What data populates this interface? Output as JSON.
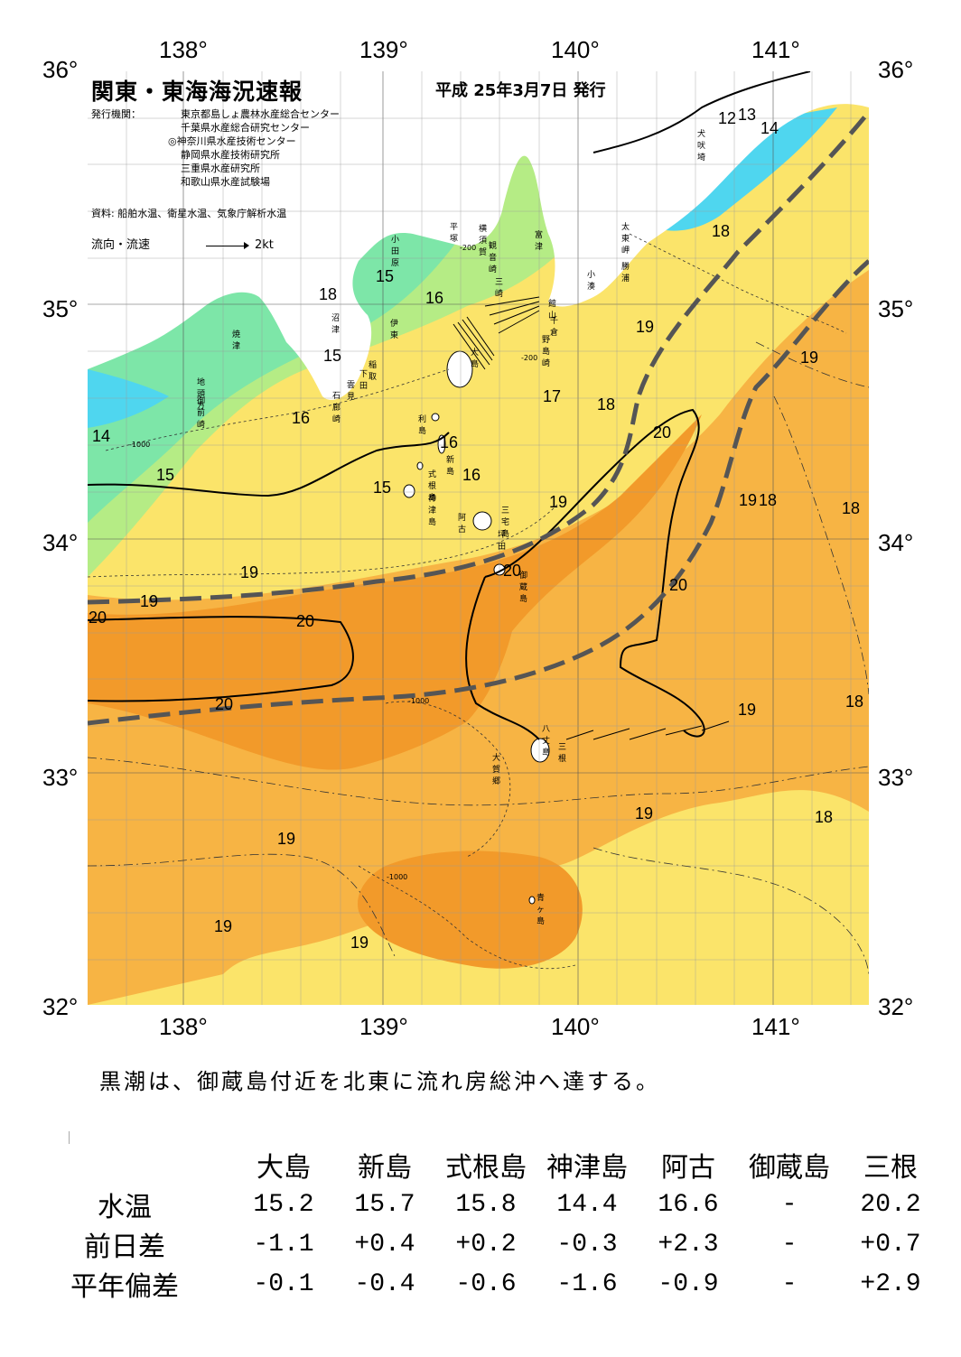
{
  "map": {
    "title": "関東・東海海況速報",
    "date": "平成 25年3月7日 発行",
    "publisher_label": "発行機関：",
    "publishers": [
      "東京都島しょ農林水産総合センター",
      "千葉県水産総合研究センター",
      "◎神奈川県水産技術センター",
      "静岡県水産技術研究所",
      "三重県水産研究所",
      "和歌山県水産試験場"
    ],
    "source": "資料: 船舶水温、衛星水温、気象庁解析水温",
    "flow_label": "流向・流速",
    "flow_scale": "2kt",
    "lon_labels": [
      "138°",
      "139°",
      "140°",
      "141°"
    ],
    "lat_labels": [
      "36°",
      "35°",
      "34°",
      "33°",
      "32°"
    ],
    "colors": {
      "cold": "#4fd6ef",
      "cool": "#7de6a8",
      "mild": "#b5ec85",
      "yellow": "#fbe46a",
      "warm": "#f7b444",
      "kuroshio": "#f29a2a",
      "land": "#ffffff",
      "kuroshio_axis": "#555555"
    },
    "place_names": [
      "犬吠埼",
      "太東岬",
      "勝浦",
      "小湊",
      "館山",
      "千倉",
      "野島崎",
      "富津",
      "観音崎",
      "横須賀",
      "三崎",
      "平塚",
      "小田原",
      "沼津",
      "伊東",
      "焼津",
      "稲取",
      "下田",
      "雲見",
      "石廊崎",
      "地頭方",
      "御前崎",
      "大島",
      "利島",
      "新島",
      "式根島",
      "神津島",
      "三宅島",
      "阿古",
      "坪田",
      "御蔵島",
      "八丈島",
      "三根",
      "大賀郷",
      "青ヶ島"
    ],
    "contour_labels": [
      "12",
      "13",
      "14",
      "18",
      "19",
      "19",
      "15",
      "16",
      "15",
      "16",
      "14",
      "15",
      "16",
      "16",
      "15",
      "17",
      "18",
      "20",
      "19",
      "19",
      "18",
      "18",
      "20",
      "20",
      "20",
      "19",
      "20",
      "19",
      "20",
      "19",
      "18",
      "19",
      "19",
      "19",
      "19",
      "18",
      "18"
    ],
    "depth_labels": [
      "-200",
      "-1000"
    ]
  },
  "summary": "黒潮は、御蔵島付近を北東に流れ房総沖へ達する。",
  "stats": {
    "stations": [
      "大島",
      "新島",
      "式根島",
      "神津島",
      "阿古",
      "御蔵島",
      "三根"
    ],
    "rows": [
      {
        "label": "水温",
        "values": [
          "15.2",
          "15.7",
          "15.8",
          "14.4",
          "16.6",
          "-",
          "20.2"
        ]
      },
      {
        "label": "前日差",
        "values": [
          "-1.1",
          "+0.4",
          "+0.2",
          "-0.3",
          "+2.3",
          "-",
          "+0.7"
        ]
      },
      {
        "label": "平年偏差",
        "values": [
          "-0.1",
          "-0.4",
          "-0.6",
          "-1.6",
          "-0.9",
          "-",
          "+2.9"
        ]
      }
    ]
  }
}
